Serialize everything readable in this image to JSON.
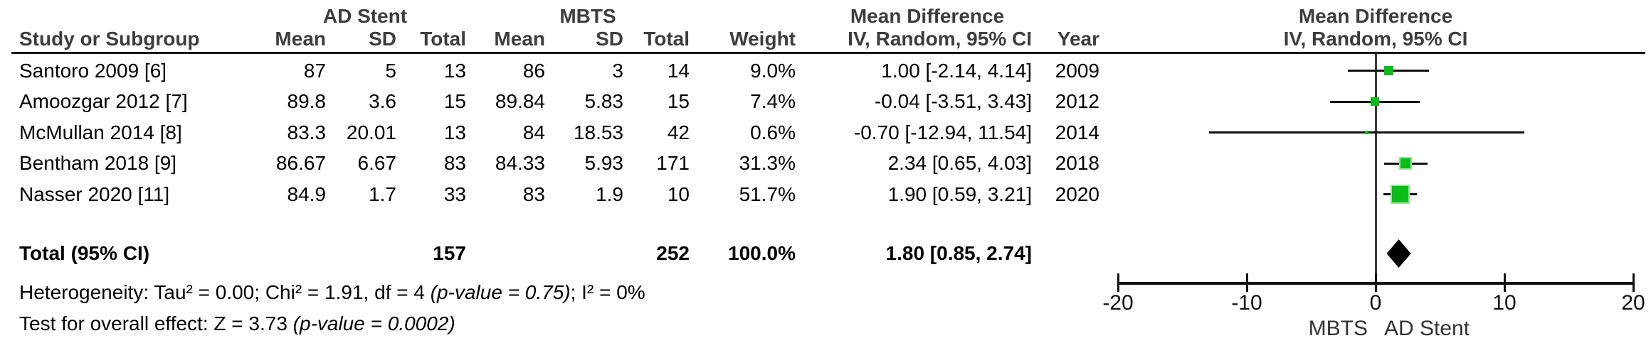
{
  "table": {
    "group_headers": {
      "group1": "AD Stent",
      "group2": "MBTS",
      "effect": "Mean Difference"
    },
    "columns": {
      "study": "Study or Subgroup",
      "mean1": "Mean",
      "sd1": "SD",
      "total1": "Total",
      "mean2": "Mean",
      "sd2": "SD",
      "total2": "Total",
      "weight": "Weight",
      "ci": "IV, Random, 95% CI",
      "year": "Year"
    },
    "studies": [
      {
        "name": "Santoro 2009 [6]",
        "mean1": "87",
        "sd1": "5",
        "total1": "13",
        "mean2": "86",
        "sd2": "3",
        "total2": "14",
        "weight": "9.0%",
        "ci": "1.00 [-2.14, 4.14]",
        "year": "2009"
      },
      {
        "name": "Amoozgar 2012 [7]",
        "mean1": "89.8",
        "sd1": "3.6",
        "total1": "15",
        "mean2": "89.84",
        "sd2": "5.83",
        "total2": "15",
        "weight": "7.4%",
        "ci": "-0.04 [-3.51, 3.43]",
        "year": "2012"
      },
      {
        "name": "McMullan 2014 [8]",
        "mean1": "83.3",
        "sd1": "20.01",
        "total1": "13",
        "mean2": "84",
        "sd2": "18.53",
        "total2": "42",
        "weight": "0.6%",
        "ci": "-0.70 [-12.94, 11.54]",
        "year": "2014"
      },
      {
        "name": "Bentham 2018 [9]",
        "mean1": "86.67",
        "sd1": "6.67",
        "total1": "83",
        "mean2": "84.33",
        "sd2": "5.93",
        "total2": "171",
        "weight": "31.3%",
        "ci": "2.34 [0.65, 4.03]",
        "year": "2018"
      },
      {
        "name": "Nasser 2020 [11]",
        "mean1": "84.9",
        "sd1": "1.7",
        "total1": "33",
        "mean2": "83",
        "sd2": "1.9",
        "total2": "10",
        "weight": "51.7%",
        "ci": "1.90 [0.59, 3.21]",
        "year": "2020"
      }
    ],
    "total": {
      "label": "Total (95% CI)",
      "total1": "157",
      "total2": "252",
      "weight": "100.0%",
      "ci": "1.80 [0.85, 2.74]"
    },
    "heterogeneity": {
      "prefix": "Heterogeneity: Tau² = 0.00; Chi² = 1.91, df = 4 ",
      "italic": "(p-value = 0.75)",
      "suffix": "; I² = 0%"
    },
    "overall_effect": {
      "prefix": "Test for overall effect: Z = 3.73 ",
      "italic": "(p-value = 0.0002)"
    }
  },
  "chart_data": {
    "type": "scatter",
    "subtype": "forest-plot",
    "title": "Mean Difference",
    "subtitle": "IV, Random, 95% CI",
    "x_axis": {
      "min": -20,
      "max": 20,
      "ticks": [
        -20,
        -10,
        0,
        10,
        20
      ],
      "label_left": "MBTS",
      "label_right": "AD Stent"
    },
    "studies": [
      {
        "name": "Santoro 2009 [6]",
        "md": 1.0,
        "ci_low": -2.14,
        "ci_high": 4.14,
        "weight_pct": 9.0,
        "year": 2009
      },
      {
        "name": "Amoozgar 2012 [7]",
        "md": -0.04,
        "ci_low": -3.51,
        "ci_high": 3.43,
        "weight_pct": 7.4,
        "year": 2012
      },
      {
        "name": "McMullan 2014 [8]",
        "md": -0.7,
        "ci_low": -12.94,
        "ci_high": 11.54,
        "weight_pct": 0.6,
        "year": 2014
      },
      {
        "name": "Bentham 2018 [9]",
        "md": 2.34,
        "ci_low": 0.65,
        "ci_high": 4.03,
        "weight_pct": 31.3,
        "year": 2018
      },
      {
        "name": "Nasser 2020 [11]",
        "md": 1.9,
        "ci_low": 0.59,
        "ci_high": 3.21,
        "weight_pct": 51.7,
        "year": 2020
      }
    ],
    "overall": {
      "md": 1.8,
      "ci_low": 0.85,
      "ci_high": 2.74,
      "total1": 157,
      "total2": 252,
      "weight_pct": 100.0
    },
    "marker_color": "#0cbd1a",
    "marker_rim_color": "#94e497",
    "diamond_color": "#000000"
  }
}
